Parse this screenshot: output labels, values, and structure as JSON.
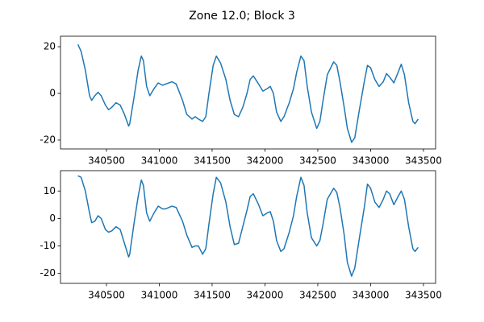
{
  "title": "Zone 12.0; Block 3",
  "chart_data": [
    {
      "type": "line",
      "x": [
        340230,
        340260,
        340300,
        340340,
        340360,
        340390,
        340420,
        340450,
        340490,
        340520,
        340550,
        340590,
        340630,
        340670,
        340710,
        340720,
        340760,
        340800,
        340830,
        340850,
        340880,
        340910,
        340950,
        340990,
        341030,
        341060,
        341120,
        341160,
        341220,
        341260,
        341310,
        341340,
        341370,
        341410,
        341440,
        341470,
        341510,
        341540,
        341580,
        341630,
        341670,
        341710,
        341750,
        341790,
        341830,
        341860,
        341890,
        341940,
        341980,
        342020,
        342050,
        342080,
        342110,
        342150,
        342180,
        342230,
        342270,
        342300,
        342340,
        342370,
        342400,
        342440,
        342490,
        342520,
        342550,
        342590,
        342650,
        342680,
        342710,
        342750,
        342780,
        342820,
        342850,
        342890,
        342940,
        342970,
        343000,
        343040,
        343080,
        343120,
        343150,
        343180,
        343220,
        343260,
        343290,
        343320,
        343360,
        343400,
        343420,
        343450
      ],
      "series": [
        {
          "color": "#1f77b4",
          "values": [
            21,
            18,
            10,
            -1,
            -3,
            -1,
            0.5,
            -1,
            -5,
            -7,
            -6,
            -4,
            -5,
            -9,
            -14,
            -13,
            -2,
            10,
            16,
            14,
            3,
            -1,
            2,
            4.5,
            3.5,
            4,
            5,
            4,
            -3,
            -9,
            -11,
            -10,
            -11,
            -12,
            -10,
            0,
            12,
            16,
            13,
            6,
            -3,
            -9,
            -10,
            -6,
            0,
            6,
            7.5,
            4,
            1,
            2,
            3,
            0,
            -8,
            -12,
            -10,
            -4,
            2,
            9,
            16,
            14,
            3,
            -8,
            -15,
            -12,
            -3,
            8,
            13.5,
            12,
            5,
            -6,
            -15,
            -21,
            -19,
            -8,
            5,
            12,
            11,
            6,
            3,
            5,
            8.5,
            7,
            4.5,
            9,
            12.5,
            8,
            -4,
            -12,
            -13,
            -11
          ]
        }
      ],
      "xlim": [
        340065,
        343615
      ],
      "xticks": [
        340500,
        341000,
        341500,
        342000,
        342500,
        343000,
        343500
      ],
      "ylim": [
        -23.8,
        24.5
      ],
      "yticks": [
        -20,
        0,
        20
      ]
    },
    {
      "type": "line",
      "x": [
        340230,
        340260,
        340300,
        340340,
        340360,
        340390,
        340420,
        340450,
        340490,
        340520,
        340550,
        340590,
        340630,
        340670,
        340710,
        340720,
        340760,
        340800,
        340830,
        340850,
        340880,
        340910,
        340950,
        340990,
        341030,
        341060,
        341120,
        341160,
        341220,
        341260,
        341310,
        341340,
        341370,
        341410,
        341440,
        341470,
        341510,
        341540,
        341580,
        341630,
        341670,
        341710,
        341750,
        341790,
        341830,
        341860,
        341890,
        341940,
        341980,
        342020,
        342050,
        342080,
        342110,
        342150,
        342180,
        342230,
        342270,
        342300,
        342340,
        342370,
        342400,
        342440,
        342490,
        342520,
        342550,
        342590,
        342650,
        342680,
        342710,
        342750,
        342780,
        342820,
        342850,
        342890,
        342940,
        342970,
        343000,
        343040,
        343080,
        343120,
        343150,
        343180,
        343220,
        343260,
        343290,
        343320,
        343360,
        343400,
        343420,
        343450
      ],
      "series": [
        {
          "color": "#1f77b4",
          "values": [
            15.5,
            15,
            10,
            2,
            -1.5,
            -1,
            1,
            0,
            -4,
            -5,
            -4.5,
            -3,
            -4,
            -9,
            -14,
            -13,
            -2,
            8,
            14,
            12,
            2,
            -1,
            2,
            4.5,
            3.5,
            3.5,
            4.5,
            4,
            -1,
            -6,
            -10.5,
            -10,
            -10,
            -13,
            -11,
            -2,
            9,
            15,
            13,
            6,
            -3,
            -9.5,
            -9,
            -3,
            3,
            8,
            9,
            5,
            1,
            2,
            2.5,
            -1,
            -8,
            -12,
            -11,
            -5,
            1,
            8,
            15,
            12,
            2,
            -7,
            -10,
            -8,
            -2,
            7,
            11,
            9.5,
            4,
            -6,
            -16,
            -21,
            -18,
            -8,
            4,
            12.5,
            11,
            6,
            4,
            7,
            10,
            9,
            5,
            8,
            10,
            7,
            -3,
            -11,
            -12,
            -10.5
          ]
        }
      ],
      "xlim": [
        340065,
        343615
      ],
      "xticks": [
        340500,
        341000,
        341500,
        342000,
        342500,
        343000,
        343500
      ],
      "ylim": [
        -23.6,
        17.4
      ],
      "yticks": [
        -20,
        -10,
        0,
        10
      ]
    }
  ]
}
